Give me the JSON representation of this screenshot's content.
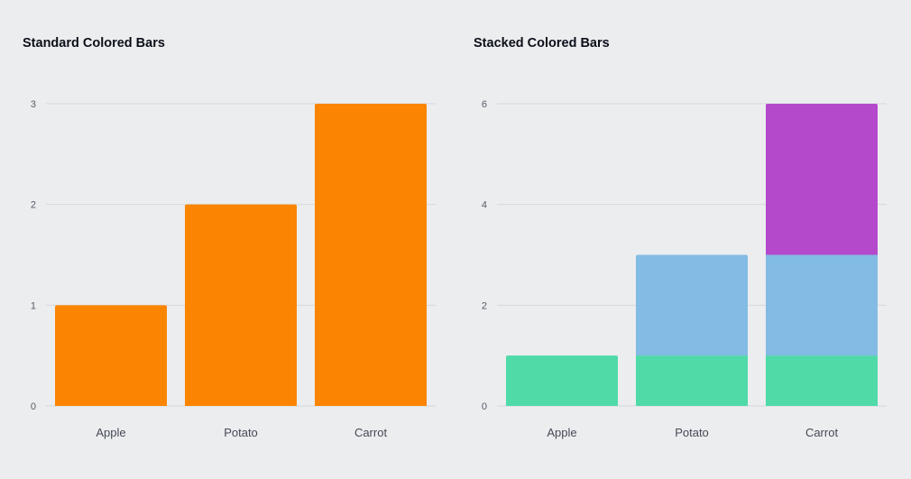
{
  "chart_data": [
    {
      "type": "bar",
      "title": "Standard Colored Bars",
      "categories": [
        "Apple",
        "Potato",
        "Carrot"
      ],
      "values": [
        1,
        2,
        3
      ],
      "color": "#fb8500",
      "yticks": [
        "0",
        "1",
        "2",
        "3"
      ],
      "ylim": [
        0,
        3
      ],
      "xlabel": "",
      "ylabel": "",
      "grid": true
    },
    {
      "type": "bar",
      "stacked": true,
      "title": "Stacked Colored Bars",
      "categories": [
        "Apple",
        "Potato",
        "Carrot"
      ],
      "series": [
        {
          "values": [
            1,
            1,
            1
          ],
          "color": "#4fdaa8"
        },
        {
          "values": [
            0,
            2,
            2
          ],
          "color": "#82bbe3"
        },
        {
          "values": [
            0,
            0,
            3
          ],
          "color": "#b449cc"
        }
      ],
      "yticks": [
        "0",
        "2",
        "4",
        "6"
      ],
      "ylim": [
        0,
        6
      ],
      "xlabel": "",
      "ylabel": "",
      "grid": true
    }
  ]
}
